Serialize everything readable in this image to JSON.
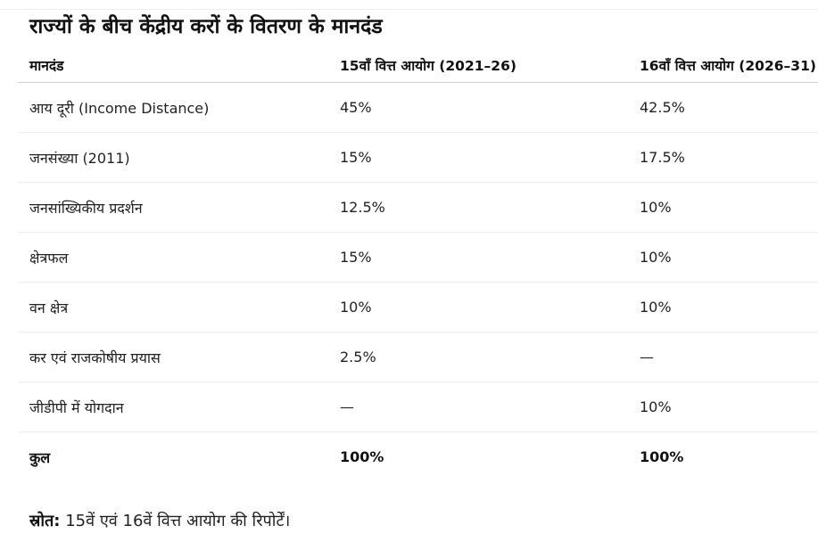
{
  "title": "राज्यों के बीच केंद्रीय करों के वितरण के मानदंड",
  "table": {
    "headers": [
      "मानदंड",
      "15वाँ वित्त आयोग (2021–26)",
      "16वाँ वित्त आयोग (2026–31)"
    ],
    "rows": [
      [
        "आय दूरी (Income Distance)",
        "45%",
        "42.5%"
      ],
      [
        "जनसंख्या (2011)",
        "15%",
        "17.5%"
      ],
      [
        "जनसांख्यिकीय प्रदर्शन",
        "12.5%",
        "10%"
      ],
      [
        "क्षेत्रफल",
        "15%",
        "10%"
      ],
      [
        "वन क्षेत्र",
        "10%",
        "10%"
      ],
      [
        "कर एवं राजकोषीय प्रयास",
        "2.5%",
        "—"
      ],
      [
        "जीडीपी में योगदान",
        "—",
        "10%"
      ],
      [
        "कुल",
        "100%",
        "100%"
      ]
    ]
  },
  "source": {
    "label": "स्रोत:",
    "text": " 15वें एवं 16वें वित्त आयोग की रिपोर्टें।"
  }
}
